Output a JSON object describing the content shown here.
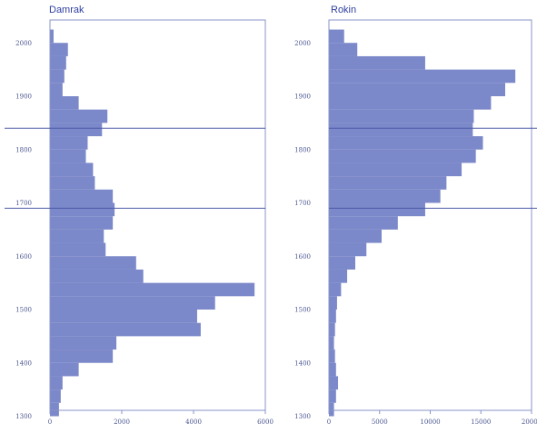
{
  "colors": {
    "bar": "#7b88c9",
    "frame": "#8a93c8",
    "title": "#2f3fa0",
    "reference_line": "#4d5ba8"
  },
  "chart_data": [
    {
      "type": "bar",
      "orientation": "horizontal",
      "title": "Damrak",
      "y_ticks": [
        "1300",
        "1400",
        "1500",
        "1600",
        "1700",
        "1800",
        "1900",
        "2000"
      ],
      "x_ticks": [
        "0",
        "2000",
        "4000",
        "6000"
      ],
      "ylim": [
        1295,
        2015
      ],
      "xlim": [
        0,
        6000
      ],
      "bin_width": 25,
      "bins_start": [
        1300,
        1325,
        1350,
        1375,
        1400,
        1425,
        1450,
        1475,
        1500,
        1525,
        1550,
        1575,
        1600,
        1625,
        1650,
        1675,
        1700,
        1725,
        1750,
        1775,
        1800,
        1825,
        1850,
        1875,
        1900,
        1925,
        1950,
        1975,
        2000
      ],
      "values": [
        250,
        300,
        350,
        800,
        1750,
        1850,
        4200,
        4100,
        4600,
        5700,
        2600,
        2400,
        1550,
        1500,
        1750,
        1800,
        1750,
        1250,
        1200,
        1000,
        1050,
        1450,
        1600,
        800,
        350,
        400,
        450,
        500,
        100
      ],
      "reference_lines_y": [
        1690,
        1840
      ],
      "grid": false
    },
    {
      "type": "bar",
      "orientation": "horizontal",
      "title": "Rokin",
      "y_ticks": [
        "1300",
        "1400",
        "1500",
        "1600",
        "1700",
        "1800",
        "1900",
        "2000"
      ],
      "x_ticks": [
        "0",
        "5000",
        "10000",
        "15000",
        "20000"
      ],
      "ylim": [
        1295,
        2015
      ],
      "xlim": [
        0,
        20000
      ],
      "bin_width": 25,
      "bins_start": [
        1300,
        1325,
        1350,
        1375,
        1400,
        1425,
        1450,
        1475,
        1500,
        1525,
        1550,
        1575,
        1600,
        1625,
        1650,
        1675,
        1700,
        1725,
        1750,
        1775,
        1800,
        1825,
        1850,
        1875,
        1900,
        1925,
        1950,
        1975,
        2000
      ],
      "values": [
        500,
        700,
        900,
        700,
        600,
        500,
        600,
        700,
        800,
        1200,
        1800,
        2600,
        3700,
        5200,
        6800,
        9500,
        11000,
        11600,
        13100,
        14500,
        15200,
        14200,
        14300,
        16000,
        17400,
        18400,
        9500,
        2800,
        1500
      ],
      "reference_lines_y": [
        1690,
        1840
      ],
      "grid": false
    }
  ]
}
